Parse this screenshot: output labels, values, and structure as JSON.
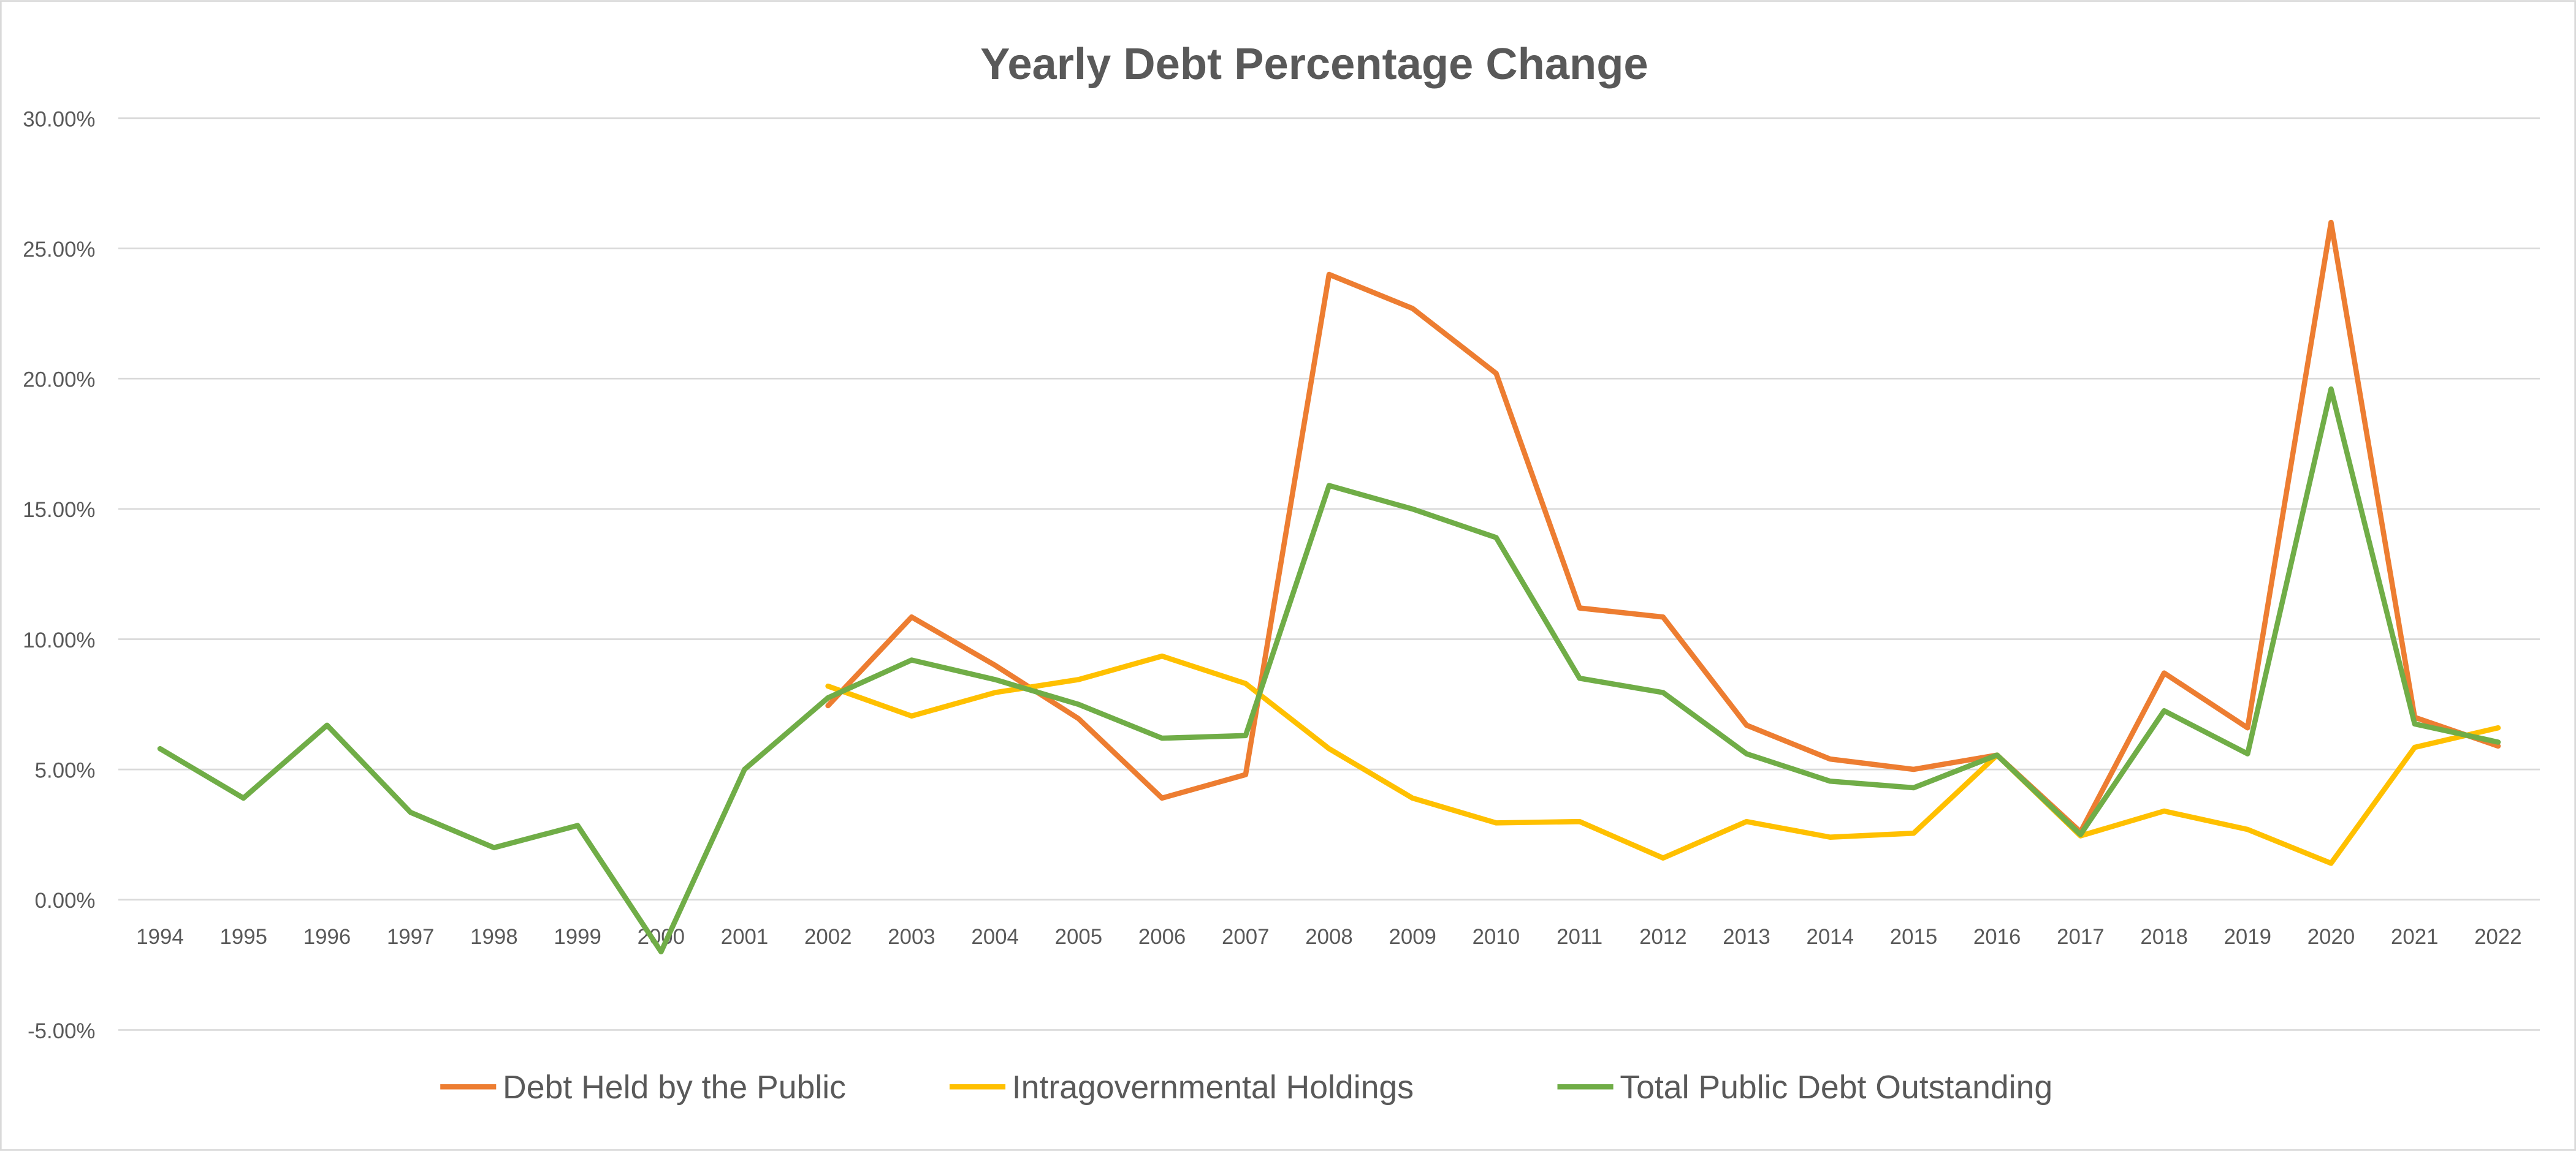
{
  "chart_data": {
    "type": "line",
    "title": "Yearly Debt Percentage Change",
    "xlabel": "",
    "ylabel": "",
    "ylim": [
      -5,
      30
    ],
    "yticks": [
      30,
      25,
      20,
      15,
      10,
      5,
      0,
      -5
    ],
    "ytick_labels": [
      "30.00%",
      "25.00%",
      "20.00%",
      "15.00%",
      "10.00%",
      "5.00%",
      "0.00%",
      "-5.00%"
    ],
    "grid": "horizontal",
    "legend_position": "bottom",
    "categories": [
      "1994",
      "1995",
      "1996",
      "1997",
      "1998",
      "1999",
      "2000",
      "2001",
      "2002",
      "2003",
      "2004",
      "2005",
      "2006",
      "2007",
      "2008",
      "2009",
      "2010",
      "2011",
      "2012",
      "2013",
      "2014",
      "2015",
      "2016",
      "2017",
      "2018",
      "2019",
      "2020",
      "2021",
      "2022"
    ],
    "series": [
      {
        "name": "Debt Held by the Public",
        "color": "#ED7D31",
        "values": [
          null,
          null,
          null,
          null,
          null,
          null,
          null,
          null,
          7.45,
          10.85,
          9.0,
          6.95,
          3.9,
          4.8,
          24.0,
          22.7,
          20.2,
          11.2,
          10.85,
          6.7,
          5.4,
          5.0,
          5.55,
          2.6,
          8.7,
          6.6,
          26.0,
          7.0,
          5.9
        ]
      },
      {
        "name": "Intragovernmental Holdings",
        "color": "#FFC000",
        "values": [
          null,
          null,
          null,
          null,
          null,
          null,
          null,
          null,
          8.2,
          7.05,
          7.95,
          8.45,
          9.35,
          8.3,
          5.8,
          3.9,
          2.95,
          3.0,
          1.6,
          3.0,
          2.4,
          2.55,
          5.55,
          2.45,
          3.4,
          2.7,
          1.4,
          5.85,
          6.6
        ]
      },
      {
        "name": "Total Public Debt Outstanding",
        "color": "#70AD47",
        "values": [
          5.8,
          3.9,
          6.7,
          3.35,
          2.0,
          2.85,
          -2.0,
          5.0,
          7.75,
          9.2,
          8.45,
          7.5,
          6.2,
          6.3,
          15.9,
          15.0,
          13.9,
          8.5,
          7.95,
          5.6,
          4.55,
          4.3,
          5.55,
          2.5,
          7.25,
          5.6,
          19.6,
          6.75,
          6.05
        ]
      }
    ]
  }
}
